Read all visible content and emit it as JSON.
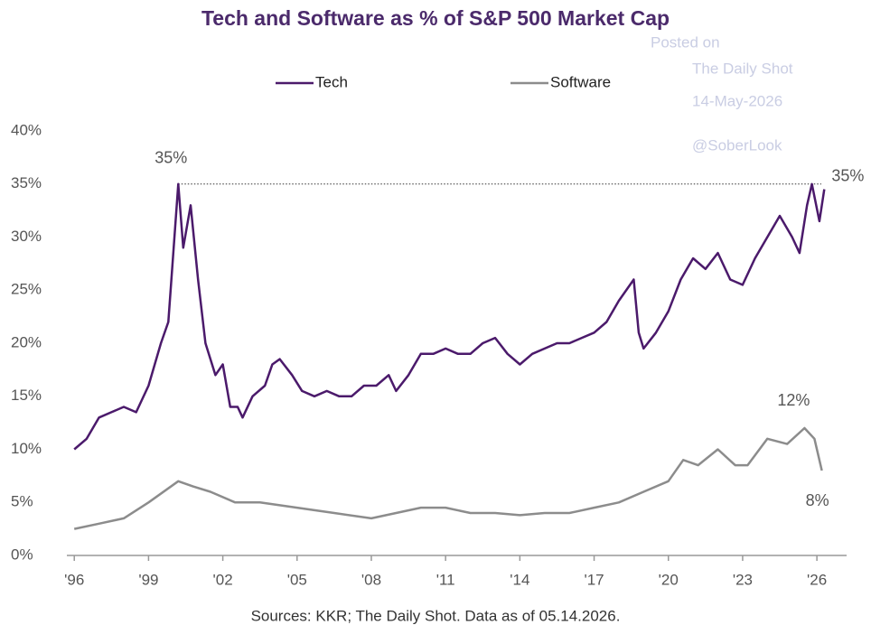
{
  "chart_data": {
    "type": "line",
    "title": "Tech and Software as % of S&P 500 Market Cap",
    "source": "Sources: KKR; The Daily Shot. Data as of 05.14.2026.",
    "watermark": [
      "Posted on",
      "The Daily Shot",
      "14-May-2026",
      "@SoberLook"
    ],
    "series": [
      {
        "name": "Tech",
        "color": "#4b1a6b",
        "x": [
          1996.0,
          1996.5,
          1997.0,
          1997.5,
          1998.0,
          1998.5,
          1999.0,
          1999.5,
          1999.8,
          2000.2,
          2000.4,
          2000.7,
          2001.0,
          2001.3,
          2001.7,
          2002.0,
          2002.3,
          2002.6,
          2002.8,
          2003.2,
          2003.7,
          2004.0,
          2004.3,
          2004.8,
          2005.2,
          2005.7,
          2006.2,
          2006.7,
          2007.2,
          2007.7,
          2008.2,
          2008.7,
          2009.0,
          2009.5,
          2010.0,
          2010.5,
          2011.0,
          2011.5,
          2012.0,
          2012.5,
          2013.0,
          2013.5,
          2014.0,
          2014.5,
          2015.0,
          2015.5,
          2016.0,
          2016.5,
          2017.0,
          2017.5,
          2018.0,
          2018.6,
          2018.8,
          2019.0,
          2019.5,
          2020.0,
          2020.5,
          2021.0,
          2021.5,
          2022.0,
          2022.5,
          2023.0,
          2023.5,
          2024.0,
          2024.5,
          2025.0,
          2025.3,
          2025.6,
          2025.8,
          2026.1,
          2026.3
        ],
        "values": [
          10,
          11,
          13,
          13.5,
          14,
          13.5,
          16,
          20,
          22,
          35,
          29,
          33,
          26,
          20,
          17,
          18,
          14,
          14,
          13,
          15,
          16,
          18,
          18.5,
          17,
          15.5,
          15,
          15.5,
          15,
          15,
          16,
          16,
          17,
          15.5,
          17,
          19,
          19,
          19.5,
          19,
          19,
          20,
          20.5,
          19,
          18,
          19,
          19.5,
          20,
          20,
          20.5,
          21,
          22,
          24,
          26,
          21,
          19.5,
          21,
          23,
          26,
          28,
          27,
          28.5,
          26,
          25.5,
          28,
          30,
          32,
          30,
          28.5,
          33,
          35,
          31.5,
          34.5
        ]
      },
      {
        "name": "Software",
        "color": "#8c8c8c",
        "x": [
          1996.0,
          1997.0,
          1998.0,
          1999.0,
          2000.2,
          2000.8,
          2001.5,
          2002.5,
          2003.5,
          2005.0,
          2006.5,
          2008.0,
          2009.0,
          2010.0,
          2011.0,
          2012.0,
          2013.0,
          2014.0,
          2015.0,
          2016.0,
          2017.0,
          2018.0,
          2019.0,
          2020.0,
          2020.6,
          2021.2,
          2022.0,
          2022.7,
          2023.2,
          2024.0,
          2024.8,
          2025.5,
          2025.9,
          2026.2
        ],
        "values": [
          2.5,
          3,
          3.5,
          5,
          7,
          6.5,
          6,
          5,
          5,
          4.5,
          4,
          3.5,
          4,
          4.5,
          4.5,
          4,
          4,
          3.8,
          4,
          4,
          4.5,
          5,
          6,
          7,
          9,
          8.5,
          10,
          8.5,
          8.5,
          11,
          10.5,
          12,
          11,
          8
        ]
      }
    ],
    "reference_line": 35,
    "annotations": [
      {
        "label": "35%",
        "x": 2000.2,
        "value": 35
      },
      {
        "label": "35%",
        "x": 2026.3,
        "value": 35
      },
      {
        "label": "12%",
        "x": 2025.5,
        "value": 12
      },
      {
        "label": "8%",
        "x": 2026.2,
        "value": 8
      }
    ],
    "xlim": [
      1995.7,
      2027.2
    ],
    "xticks": [
      {
        "value": 1996,
        "label": "'96"
      },
      {
        "value": 1999,
        "label": "'99"
      },
      {
        "value": 2002,
        "label": "'02"
      },
      {
        "value": 2005,
        "label": "'05"
      },
      {
        "value": 2008,
        "label": "'08"
      },
      {
        "value": 2011,
        "label": "'11"
      },
      {
        "value": 2014,
        "label": "'14"
      },
      {
        "value": 2017,
        "label": "'17"
      },
      {
        "value": 2020,
        "label": "'20"
      },
      {
        "value": 2023,
        "label": "'23"
      },
      {
        "value": 2026,
        "label": "'26"
      }
    ],
    "ylim": [
      0,
      40
    ],
    "yticks": [
      {
        "value": 0,
        "label": "0%"
      },
      {
        "value": 5,
        "label": "5%"
      },
      {
        "value": 10,
        "label": "10%"
      },
      {
        "value": 15,
        "label": "15%"
      },
      {
        "value": 20,
        "label": "20%"
      },
      {
        "value": 25,
        "label": "25%"
      },
      {
        "value": 30,
        "label": "30%"
      },
      {
        "value": 35,
        "label": "35%"
      },
      {
        "value": 40,
        "label": "40%"
      }
    ]
  }
}
